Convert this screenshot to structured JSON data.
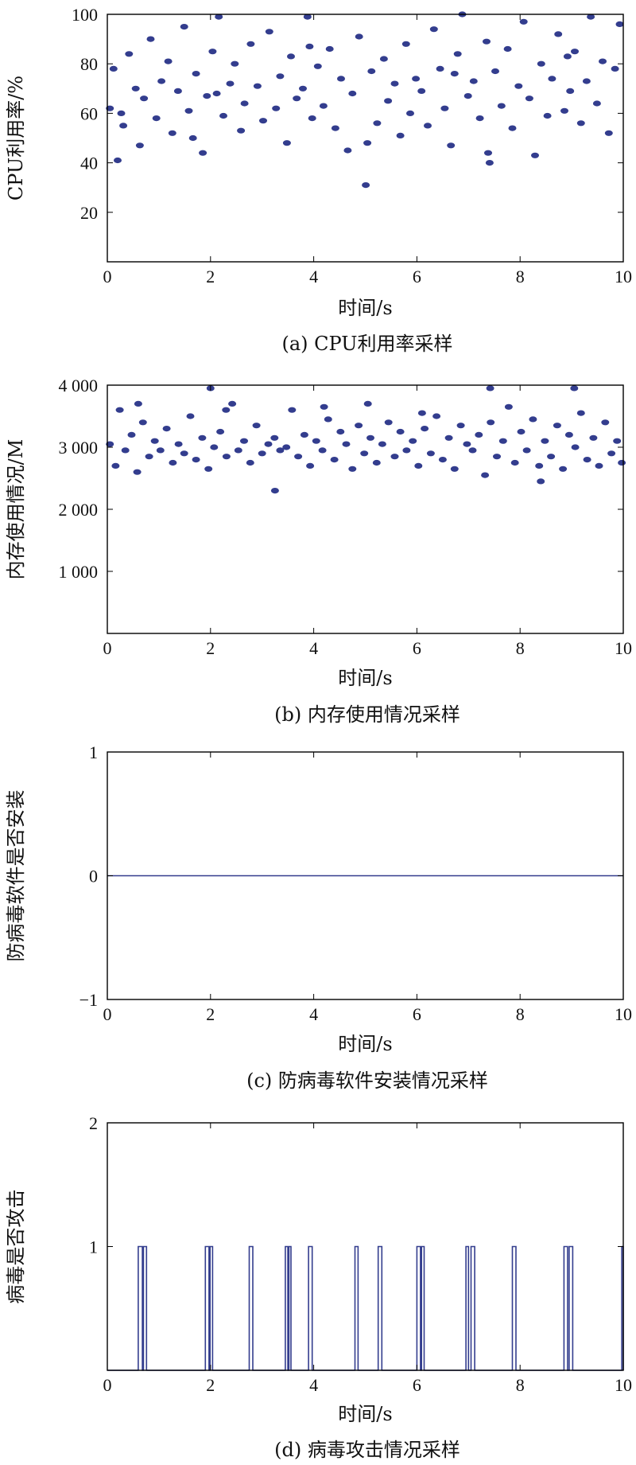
{
  "colors": {
    "series": "#333d8e",
    "axes": "#000000",
    "background": "#ffffff"
  },
  "chart_data": [
    {
      "type": "scatter",
      "caption": "(a) CPU利用率采样",
      "xlabel": "时间/s",
      "ylabel": "CPU利用率/%",
      "xlim": [
        0,
        10
      ],
      "ylim": [
        0,
        100
      ],
      "xticks": [
        "0",
        "2",
        "4",
        "6",
        "8",
        "10"
      ],
      "yticks": [
        "20",
        "40",
        "60",
        "80",
        "100"
      ],
      "series": [
        {
          "x": [
            0.05,
            0.12,
            0.2,
            0.31,
            0.42,
            0.55,
            0.63,
            0.71,
            0.84,
            0.95,
            1.05,
            1.18,
            1.26,
            1.37,
            1.49,
            1.58,
            1.72,
            1.85,
            1.93,
            2.04,
            2.16,
            2.25,
            2.38,
            2.47,
            2.59,
            2.66,
            2.78,
            2.91,
            3.02,
            3.14,
            3.27,
            3.35,
            3.48,
            3.56,
            3.67,
            3.79,
            3.88,
            3.97,
            4.08,
            4.19,
            4.31,
            4.42,
            4.53,
            4.66,
            4.75,
            4.88,
            5.01,
            5.12,
            5.23,
            5.36,
            5.44,
            5.57,
            5.68,
            5.79,
            5.87,
            5.98,
            6.09,
            6.21,
            6.33,
            6.45,
            6.54,
            6.66,
            6.79,
            6.88,
            6.99,
            7.1,
            7.22,
            7.35,
            7.41,
            7.52,
            7.64,
            7.76,
            7.85,
            7.97,
            8.07,
            8.18,
            8.29,
            8.41,
            8.53,
            8.62,
            8.74,
            8.86,
            8.97,
            9.06,
            9.18,
            9.29,
            9.37,
            9.49,
            9.6,
            9.72,
            9.84,
            9.93,
            0.27,
            1.66,
            2.12,
            3.92,
            5.04,
            6.73,
            7.38,
            8.92
          ],
          "y": [
            62,
            78,
            41,
            55,
            84,
            70,
            47,
            66,
            90,
            58,
            73,
            81,
            52,
            69,
            95,
            61,
            76,
            44,
            67,
            85,
            99,
            59,
            72,
            80,
            53,
            64,
            88,
            71,
            57,
            93,
            62,
            75,
            48,
            83,
            66,
            70,
            99,
            58,
            79,
            63,
            86,
            54,
            74,
            45,
            68,
            91,
            31,
            77,
            56,
            82,
            65,
            72,
            51,
            88,
            60,
            74,
            69,
            55,
            94,
            78,
            62,
            47,
            84,
            100,
            67,
            73,
            58,
            89,
            40,
            77,
            63,
            86,
            54,
            71,
            97,
            66,
            43,
            80,
            59,
            74,
            92,
            61,
            69,
            85,
            56,
            73,
            99,
            64,
            81,
            52,
            78,
            96,
            60,
            50,
            68,
            87,
            48,
            76,
            44,
            83
          ]
        }
      ]
    },
    {
      "type": "scatter",
      "caption": "(b) 内存使用情况采样",
      "xlabel": "时间/s",
      "ylabel": "内存使用情况/M",
      "xlim": [
        0,
        10
      ],
      "ylim": [
        0,
        4000
      ],
      "xticks": [
        "0",
        "2",
        "4",
        "6",
        "8",
        "10"
      ],
      "yticks": [
        "1 000",
        "2 000",
        "3 000",
        "4 000"
      ],
      "series": [
        {
          "x": [
            0.05,
            0.16,
            0.24,
            0.35,
            0.47,
            0.58,
            0.69,
            0.81,
            0.92,
            1.03,
            1.15,
            1.27,
            1.38,
            1.49,
            1.61,
            1.72,
            1.84,
            1.96,
            2.07,
            2.19,
            2.31,
            2.42,
            2.54,
            2.65,
            2.77,
            2.89,
            3.0,
            3.12,
            3.24,
            3.35,
            3.47,
            3.58,
            3.7,
            3.82,
            3.93,
            4.05,
            4.17,
            4.28,
            4.4,
            4.52,
            4.63,
            4.75,
            4.87,
            4.98,
            5.1,
            5.22,
            5.33,
            5.45,
            5.57,
            5.68,
            5.8,
            5.92,
            6.03,
            6.15,
            6.27,
            6.38,
            6.5,
            6.62,
            6.73,
            6.85,
            6.97,
            7.08,
            7.2,
            7.32,
            7.43,
            7.55,
            7.67,
            7.78,
            7.9,
            8.02,
            8.13,
            8.25,
            8.37,
            8.48,
            8.6,
            8.72,
            8.83,
            8.95,
            9.07,
            9.18,
            9.3,
            9.42,
            9.53,
            9.65,
            9.77,
            9.88,
            9.97,
            2.0,
            3.25,
            5.05,
            7.42,
            9.05,
            0.6,
            2.3,
            4.2,
            6.1,
            8.4
          ],
          "y": [
            3050,
            2700,
            3600,
            2950,
            3200,
            2600,
            3400,
            2850,
            3100,
            2950,
            3300,
            2750,
            3050,
            2900,
            3500,
            2800,
            3150,
            2650,
            3000,
            3250,
            2850,
            3700,
            2950,
            3100,
            2750,
            3350,
            2900,
            3050,
            3150,
            2950,
            3000,
            3600,
            2850,
            3200,
            2700,
            3100,
            2950,
            3450,
            2800,
            3250,
            3050,
            2650,
            3350,
            2900,
            3150,
            2750,
            3050,
            3400,
            2850,
            3250,
            2950,
            3100,
            2700,
            3300,
            2900,
            3500,
            2800,
            3150,
            2650,
            3350,
            3050,
            2950,
            3200,
            2550,
            3400,
            2850,
            3100,
            3650,
            2750,
            3250,
            2950,
            3450,
            2700,
            3100,
            2850,
            3350,
            2650,
            3200,
            3000,
            3550,
            2800,
            3150,
            2700,
            3400,
            2900,
            3100,
            2750,
            3950,
            2300,
            3700,
            3950,
            3950,
            3700,
            3600,
            3650,
            3550,
            2450
          ]
        }
      ]
    },
    {
      "type": "line",
      "caption": "(c) 防病毒软件安装情况采样",
      "xlabel": "时间/s",
      "ylabel": "防病毒软件是否安装",
      "xlim": [
        0,
        10
      ],
      "ylim": [
        -1,
        1
      ],
      "xticks": [
        "0",
        "2",
        "4",
        "6",
        "8",
        "10"
      ],
      "yticks": [
        "−1",
        "0",
        "1"
      ],
      "series": [
        {
          "x": [
            0,
            10
          ],
          "y": [
            0,
            0
          ]
        }
      ]
    },
    {
      "type": "line",
      "caption": "(d) 病毒攻击情况采样",
      "xlabel": "时间/s",
      "ylabel": "病毒是否攻击",
      "xlim": [
        0,
        10
      ],
      "ylim": [
        0,
        2
      ],
      "xticks": [
        "0",
        "2",
        "4",
        "6",
        "8",
        "10"
      ],
      "yticks": [
        "1",
        "2"
      ],
      "series": [
        {
          "pulses": [
            [
              0.6,
              0.68
            ],
            [
              0.7,
              0.76
            ],
            [
              1.9,
              1.97
            ],
            [
              1.99,
              2.04
            ],
            [
              2.75,
              2.82
            ],
            [
              3.45,
              3.5
            ],
            [
              3.52,
              3.56
            ],
            [
              3.9,
              3.97
            ],
            [
              4.8,
              4.86
            ],
            [
              5.25,
              5.32
            ],
            [
              6.0,
              6.07
            ],
            [
              6.09,
              6.14
            ],
            [
              6.95,
              7.0
            ],
            [
              7.05,
              7.12
            ],
            [
              7.85,
              7.92
            ],
            [
              8.85,
              8.92
            ],
            [
              8.95,
              9.02
            ],
            [
              9.97,
              10.0
            ]
          ]
        }
      ]
    }
  ]
}
